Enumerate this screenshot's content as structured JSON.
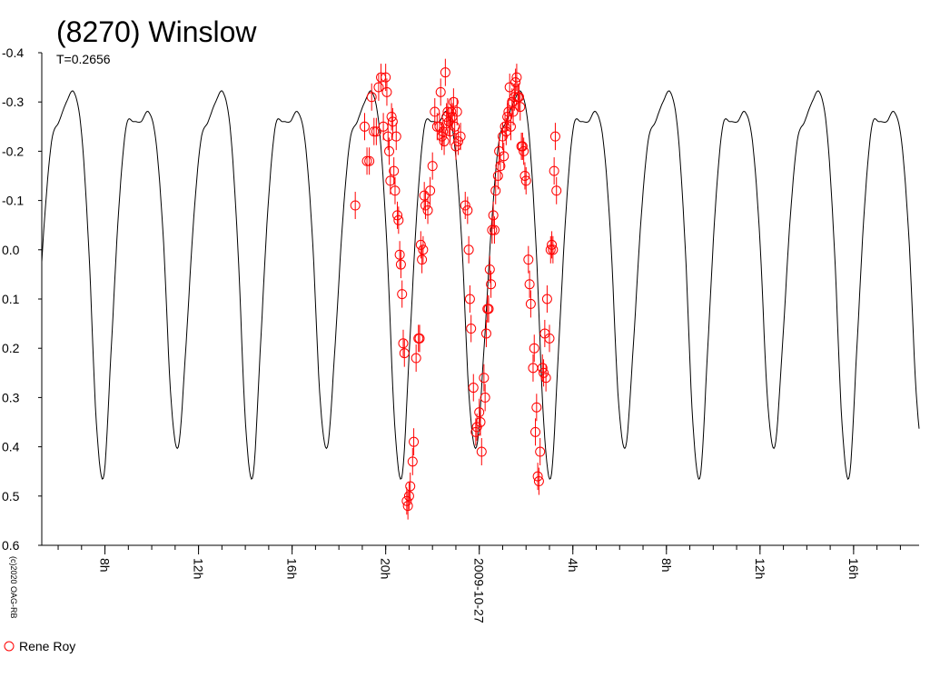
{
  "chart_data": {
    "type": "scatter",
    "title": "(8270) Winslow",
    "subtitle": "T=0.2656",
    "copyright": "(c)2020 OAG-RB",
    "ylim": [
      0.6,
      -0.4
    ],
    "yticks": [
      "-0.4",
      "-0.3",
      "-0.2",
      "-0.1",
      "0.0",
      "0.1",
      "0.2",
      "0.3",
      "0.4",
      "0.5",
      "0.6"
    ],
    "xlim_hours": [
      5.3,
      42.8
    ],
    "xticks": [
      {
        "h": 8,
        "label": "8h"
      },
      {
        "h": 12,
        "label": "12h"
      },
      {
        "h": 16,
        "label": "16h"
      },
      {
        "h": 20,
        "label": "20h"
      },
      {
        "h": 24,
        "label": "2009-10-27"
      },
      {
        "h": 28,
        "label": "4h"
      },
      {
        "h": 32,
        "label": "8h"
      },
      {
        "h": 36,
        "label": "12h"
      },
      {
        "h": 40,
        "label": "16h"
      }
    ],
    "minor_tick_step_hours": 1,
    "period_hours": 6.374,
    "model_curve": {
      "name": "",
      "color": "#000000",
      "phase": [
        0.0,
        0.05,
        0.1,
        0.15,
        0.2,
        0.25,
        0.3,
        0.35,
        0.4,
        0.45,
        0.5,
        0.55,
        0.6,
        0.65,
        0.7,
        0.75,
        0.8,
        0.85,
        0.9,
        0.95
      ],
      "mag": [
        0.46,
        0.2,
        -0.08,
        -0.25,
        -0.26,
        -0.26,
        -0.28,
        -0.22,
        -0.02,
        0.3,
        0.4,
        0.2,
        -0.05,
        -0.22,
        -0.26,
        -0.3,
        -0.32,
        -0.24,
        0.0,
        0.35
      ],
      "phase_offset_hours": 7.95
    },
    "series": [
      {
        "name": "Rene Roy",
        "color": "#ff0000",
        "points": [
          {
            "x": 18.7,
            "y": -0.09
          },
          {
            "x": 19.1,
            "y": -0.25
          },
          {
            "x": 19.2,
            "y": -0.18
          },
          {
            "x": 19.3,
            "y": -0.18
          },
          {
            "x": 19.4,
            "y": -0.31
          },
          {
            "x": 19.5,
            "y": -0.24
          },
          {
            "x": 19.6,
            "y": -0.24
          },
          {
            "x": 19.7,
            "y": -0.33
          },
          {
            "x": 19.8,
            "y": -0.35
          },
          {
            "x": 19.9,
            "y": -0.25
          },
          {
            "x": 20.0,
            "y": -0.35
          },
          {
            "x": 20.05,
            "y": -0.32
          },
          {
            "x": 20.1,
            "y": -0.23
          },
          {
            "x": 20.15,
            "y": -0.2
          },
          {
            "x": 20.2,
            "y": -0.14
          },
          {
            "x": 20.25,
            "y": -0.27
          },
          {
            "x": 20.3,
            "y": -0.26
          },
          {
            "x": 20.35,
            "y": -0.16
          },
          {
            "x": 20.4,
            "y": -0.12
          },
          {
            "x": 20.45,
            "y": -0.23
          },
          {
            "x": 20.5,
            "y": -0.07
          },
          {
            "x": 20.55,
            "y": -0.06
          },
          {
            "x": 20.6,
            "y": 0.01
          },
          {
            "x": 20.65,
            "y": 0.03
          },
          {
            "x": 20.7,
            "y": 0.09
          },
          {
            "x": 20.75,
            "y": 0.19
          },
          {
            "x": 20.8,
            "y": 0.21
          },
          {
            "x": 20.9,
            "y": 0.51
          },
          {
            "x": 20.95,
            "y": 0.52
          },
          {
            "x": 21.0,
            "y": 0.5
          },
          {
            "x": 21.05,
            "y": 0.48
          },
          {
            "x": 21.15,
            "y": 0.43
          },
          {
            "x": 21.2,
            "y": 0.39
          },
          {
            "x": 21.3,
            "y": 0.22
          },
          {
            "x": 21.4,
            "y": 0.18
          },
          {
            "x": 21.45,
            "y": 0.18
          },
          {
            "x": 21.5,
            "y": -0.01
          },
          {
            "x": 21.55,
            "y": 0.02
          },
          {
            "x": 21.6,
            "y": 0.0
          },
          {
            "x": 21.65,
            "y": -0.11
          },
          {
            "x": 21.7,
            "y": -0.09
          },
          {
            "x": 21.8,
            "y": -0.08
          },
          {
            "x": 21.9,
            "y": -0.12
          },
          {
            "x": 22.0,
            "y": -0.17
          },
          {
            "x": 22.1,
            "y": -0.28
          },
          {
            "x": 22.2,
            "y": -0.25
          },
          {
            "x": 22.3,
            "y": -0.25
          },
          {
            "x": 22.35,
            "y": -0.32
          },
          {
            "x": 22.4,
            "y": -0.23
          },
          {
            "x": 22.45,
            "y": -0.24
          },
          {
            "x": 22.5,
            "y": -0.22
          },
          {
            "x": 22.55,
            "y": -0.36
          },
          {
            "x": 22.6,
            "y": -0.27
          },
          {
            "x": 22.65,
            "y": -0.28
          },
          {
            "x": 22.7,
            "y": -0.26
          },
          {
            "x": 22.75,
            "y": -0.24
          },
          {
            "x": 22.8,
            "y": -0.28
          },
          {
            "x": 22.85,
            "y": -0.27
          },
          {
            "x": 22.9,
            "y": -0.3
          },
          {
            "x": 22.95,
            "y": -0.25
          },
          {
            "x": 23.0,
            "y": -0.21
          },
          {
            "x": 23.05,
            "y": -0.28
          },
          {
            "x": 23.1,
            "y": -0.22
          },
          {
            "x": 23.2,
            "y": -0.23
          },
          {
            "x": 23.4,
            "y": -0.09
          },
          {
            "x": 23.5,
            "y": -0.08
          },
          {
            "x": 23.55,
            "y": 0.0
          },
          {
            "x": 23.6,
            "y": 0.1
          },
          {
            "x": 23.65,
            "y": 0.16
          },
          {
            "x": 23.75,
            "y": 0.28
          },
          {
            "x": 23.85,
            "y": 0.37
          },
          {
            "x": 23.9,
            "y": 0.36
          },
          {
            "x": 24.0,
            "y": 0.33
          },
          {
            "x": 24.05,
            "y": 0.35
          },
          {
            "x": 24.1,
            "y": 0.41
          },
          {
            "x": 24.2,
            "y": 0.26
          },
          {
            "x": 24.25,
            "y": 0.3
          },
          {
            "x": 24.3,
            "y": 0.17
          },
          {
            "x": 24.35,
            "y": 0.12
          },
          {
            "x": 24.4,
            "y": 0.12
          },
          {
            "x": 24.45,
            "y": 0.04
          },
          {
            "x": 24.5,
            "y": 0.07
          },
          {
            "x": 24.55,
            "y": -0.04
          },
          {
            "x": 24.6,
            "y": -0.07
          },
          {
            "x": 24.65,
            "y": -0.04
          },
          {
            "x": 24.7,
            "y": -0.12
          },
          {
            "x": 24.8,
            "y": -0.15
          },
          {
            "x": 24.85,
            "y": -0.2
          },
          {
            "x": 24.9,
            "y": -0.17
          },
          {
            "x": 25.0,
            "y": -0.23
          },
          {
            "x": 25.05,
            "y": -0.19
          },
          {
            "x": 25.1,
            "y": -0.25
          },
          {
            "x": 25.15,
            "y": -0.24
          },
          {
            "x": 25.2,
            "y": -0.27
          },
          {
            "x": 25.25,
            "y": -0.28
          },
          {
            "x": 25.3,
            "y": -0.33
          },
          {
            "x": 25.35,
            "y": -0.25
          },
          {
            "x": 25.4,
            "y": -0.3
          },
          {
            "x": 25.45,
            "y": -0.28
          },
          {
            "x": 25.5,
            "y": -0.31
          },
          {
            "x": 25.55,
            "y": -0.34
          },
          {
            "x": 25.6,
            "y": -0.35
          },
          {
            "x": 25.65,
            "y": -0.31
          },
          {
            "x": 25.7,
            "y": -0.31
          },
          {
            "x": 25.75,
            "y": -0.29
          },
          {
            "x": 25.8,
            "y": -0.21
          },
          {
            "x": 25.85,
            "y": -0.21
          },
          {
            "x": 25.9,
            "y": -0.2
          },
          {
            "x": 25.95,
            "y": -0.15
          },
          {
            "x": 26.0,
            "y": -0.14
          },
          {
            "x": 26.1,
            "y": 0.02
          },
          {
            "x": 26.15,
            "y": 0.07
          },
          {
            "x": 26.2,
            "y": 0.11
          },
          {
            "x": 26.3,
            "y": 0.24
          },
          {
            "x": 26.35,
            "y": 0.2
          },
          {
            "x": 26.4,
            "y": 0.37
          },
          {
            "x": 26.45,
            "y": 0.32
          },
          {
            "x": 26.5,
            "y": 0.46
          },
          {
            "x": 26.55,
            "y": 0.47
          },
          {
            "x": 26.6,
            "y": 0.41
          },
          {
            "x": 26.7,
            "y": 0.24
          },
          {
            "x": 26.75,
            "y": 0.25
          },
          {
            "x": 26.8,
            "y": 0.17
          },
          {
            "x": 26.85,
            "y": 0.26
          },
          {
            "x": 26.9,
            "y": 0.1
          },
          {
            "x": 27.0,
            "y": 0.18
          },
          {
            "x": 27.05,
            "y": 0.0
          },
          {
            "x": 27.1,
            "y": -0.01
          },
          {
            "x": 27.15,
            "y": 0.0
          },
          {
            "x": 27.2,
            "y": -0.16
          },
          {
            "x": 27.25,
            "y": -0.23
          },
          {
            "x": 27.3,
            "y": -0.12
          }
        ]
      }
    ],
    "legend": "bottom-left",
    "grid": false
  }
}
